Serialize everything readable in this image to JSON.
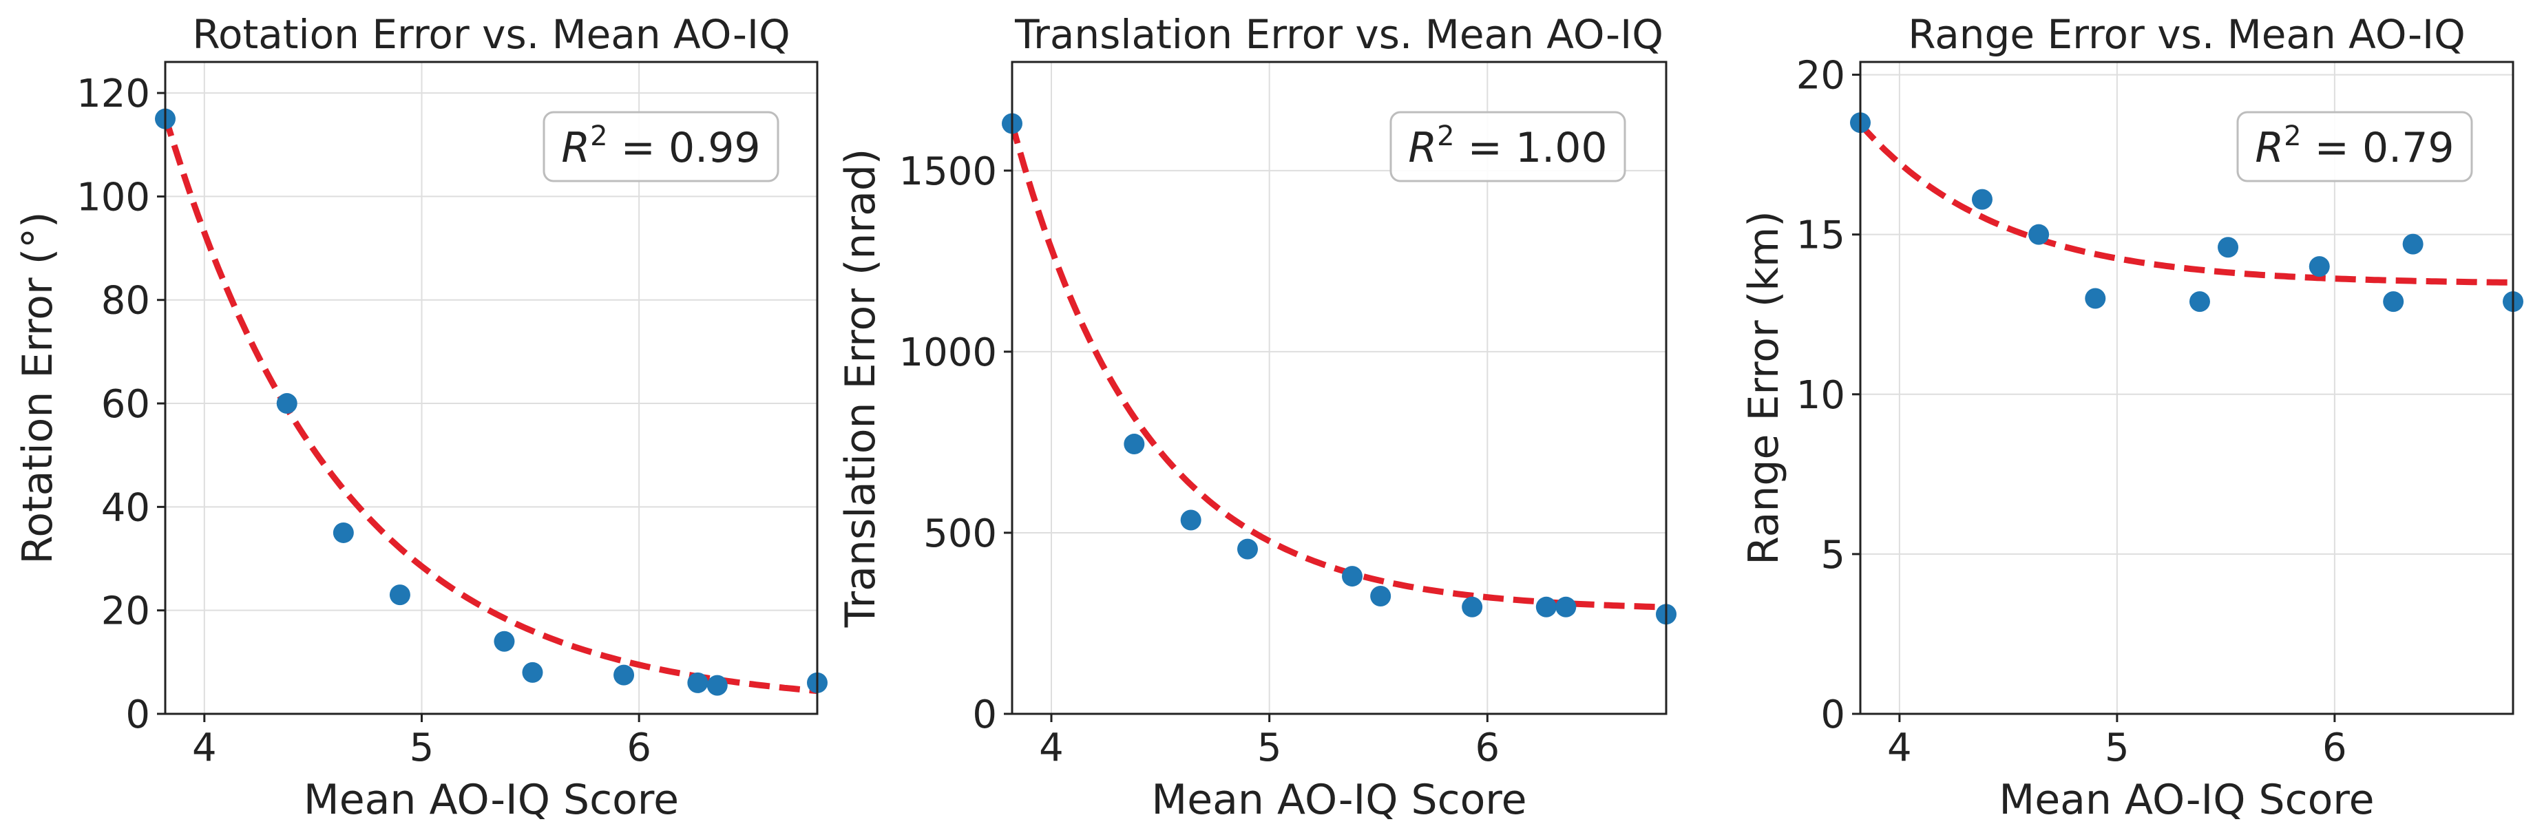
{
  "chart_data": [
    {
      "type": "scatter",
      "title": "Rotation Error vs. Mean AO-IQ",
      "xlabel": "Mean AO-IQ Score",
      "ylabel": "Rotation Error (°)",
      "xlim": [
        3.82,
        6.82
      ],
      "ylim": [
        0,
        126
      ],
      "xticks": [
        4,
        5,
        6
      ],
      "yticks": [
        0,
        20,
        40,
        60,
        80,
        100,
        120
      ],
      "grid": true,
      "points": {
        "x": [
          3.82,
          4.38,
          4.64,
          4.9,
          5.38,
          5.51,
          5.93,
          6.27,
          6.36,
          6.82
        ],
        "y": [
          115,
          60,
          35,
          23,
          14,
          8,
          7.5,
          6,
          5.5,
          6
        ]
      },
      "fit": {
        "style": "dashed",
        "type": "exponential",
        "a": 114,
        "b": 1.22,
        "c": 1.5,
        "x0": 3.82
      },
      "annotation": {
        "label": "R",
        "exponent": "2",
        "value": "= 0.99"
      }
    },
    {
      "type": "scatter",
      "title": "Translation Error vs. Mean AO-IQ",
      "xlabel": "Mean AO-IQ Score",
      "ylabel": "Translation Error (nrad)",
      "xlim": [
        3.82,
        6.82
      ],
      "ylim": [
        0,
        1800
      ],
      "xticks": [
        4,
        5,
        6
      ],
      "yticks": [
        0,
        500,
        1000,
        1500
      ],
      "grid": true,
      "points": {
        "x": [
          3.82,
          4.38,
          4.64,
          4.9,
          5.38,
          5.51,
          5.93,
          6.27,
          6.36,
          6.82
        ],
        "y": [
          1630,
          745,
          535,
          455,
          380,
          325,
          295,
          295,
          295,
          275
        ]
      },
      "fit": {
        "style": "dashed",
        "type": "exponential",
        "a": 1345,
        "b": 1.65,
        "c": 285,
        "x0": 3.82
      },
      "annotation": {
        "label": "R",
        "exponent": "2",
        "value": "= 1.00"
      }
    },
    {
      "type": "scatter",
      "title": "Range Error vs. Mean AO-IQ",
      "xlabel": "Mean AO-IQ Score",
      "ylabel": "Range Error (km)",
      "xlim": [
        3.82,
        6.82
      ],
      "ylim": [
        0,
        20.4
      ],
      "xticks": [
        4,
        5,
        6
      ],
      "yticks": [
        0,
        5,
        10,
        15,
        20
      ],
      "grid": true,
      "points": {
        "x": [
          3.82,
          4.38,
          4.64,
          4.9,
          5.38,
          5.51,
          5.93,
          6.27,
          6.36,
          6.82
        ],
        "y": [
          18.5,
          16.1,
          15.0,
          13.0,
          12.9,
          14.6,
          14.0,
          12.9,
          14.7,
          12.9
        ]
      },
      "fit": {
        "style": "dashed",
        "type": "exponential",
        "a": 5.0,
        "b": 1.55,
        "c": 13.45,
        "x0": 3.82
      },
      "annotation": {
        "label": "R",
        "exponent": "2",
        "value": "= 0.79"
      }
    }
  ],
  "colors": {
    "points": "#1f77b4",
    "fit": "#e3202a",
    "grid": "#dedede",
    "axis": "#222222"
  }
}
